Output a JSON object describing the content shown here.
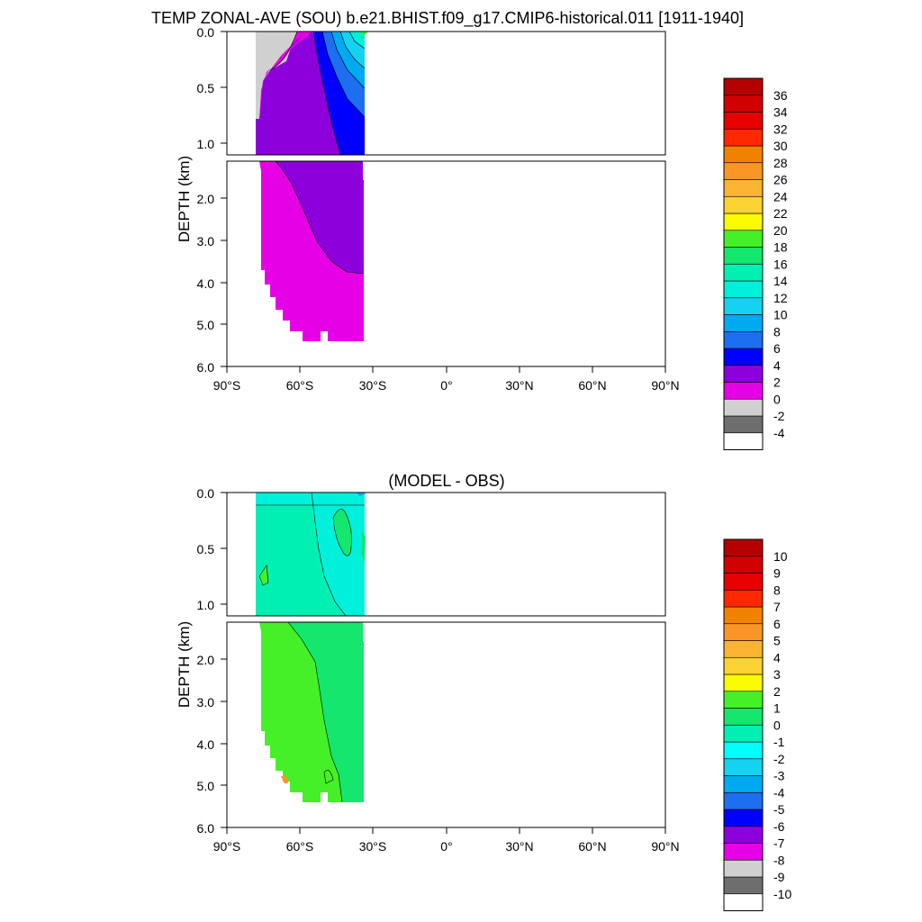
{
  "figure": {
    "title": "TEMP ZONAL-AVE (SOU) b.e21.BHIST.f09_g17.CMIP6-historical.011 [1911-1940]"
  },
  "chart_data": [
    {
      "type": "heatmap",
      "title": "TEMP ZONAL-AVE (SOU) b.e21.BHIST.f09_g17.CMIP6-historical.011 [1911-1940]",
      "xlabel": "",
      "ylabel": "DEPTH (km)",
      "x_ticks": [
        "90°S",
        "60°S",
        "30°S",
        "0°",
        "30°N",
        "60°N",
        "90°N"
      ],
      "y_ticks_upper": [
        "0.0",
        "0.5",
        "1.0"
      ],
      "y_ticks_lower": [
        "2.0",
        "3.0",
        "4.0",
        "5.0",
        "6.0"
      ],
      "xlim": [
        -90,
        90
      ],
      "ylim_upper_km": [
        0,
        1.1
      ],
      "ylim_lower_km": [
        1.1,
        6.0
      ],
      "data_extent_lat": [
        -78,
        -34
      ],
      "colorbar": {
        "levels": [
          "-4",
          "-2",
          "0",
          "2",
          "4",
          "6",
          "8",
          "10",
          "12",
          "14",
          "16",
          "18",
          "20",
          "22",
          "24",
          "26",
          "28",
          "30",
          "32",
          "34",
          "36"
        ],
        "colors": [
          "#ffffff",
          "#6e6e6e",
          "#d0d0d0",
          "#e600e6",
          "#8c00dc",
          "#0000ff",
          "#1e6ef0",
          "#00aaf0",
          "#14d2f0",
          "#00f0dc",
          "#00f0b4",
          "#14e66e",
          "#46f028",
          "#fafa00",
          "#fad232",
          "#fab432",
          "#fa9628",
          "#f08200",
          "#ff2800",
          "#e60000",
          "#d20000",
          "#b40000"
        ]
      }
    },
    {
      "type": "heatmap",
      "title": "(MODEL - OBS)",
      "xlabel": "",
      "ylabel": "DEPTH (km)",
      "x_ticks": [
        "90°S",
        "60°S",
        "30°S",
        "0°",
        "30°N",
        "60°N",
        "90°N"
      ],
      "y_ticks_upper": [
        "0.0",
        "0.5",
        "1.0"
      ],
      "y_ticks_lower": [
        "2.0",
        "3.0",
        "4.0",
        "5.0",
        "6.0"
      ],
      "xlim": [
        -90,
        90
      ],
      "ylim_upper_km": [
        0,
        1.1
      ],
      "ylim_lower_km": [
        1.1,
        6.0
      ],
      "data_extent_lat": [
        -78,
        -34
      ],
      "colorbar": {
        "levels": [
          "-10",
          "-9",
          "-8",
          "-7",
          "-6",
          "-5",
          "-4",
          "-3",
          "-2",
          "-1",
          "0",
          "1",
          "2",
          "3",
          "4",
          "5",
          "6",
          "7",
          "8",
          "9",
          "10"
        ],
        "colors": [
          "#ffffff",
          "#6e6e6e",
          "#d0d0d0",
          "#e600e6",
          "#8c00dc",
          "#0000ff",
          "#1e6ef0",
          "#00aaf0",
          "#14d2f0",
          "#00ffff",
          "#00f0b4",
          "#14e66e",
          "#46f028",
          "#fafa00",
          "#fad232",
          "#fab432",
          "#fa9628",
          "#f08200",
          "#ff2800",
          "#e60000",
          "#d20000",
          "#b40000"
        ]
      }
    }
  ]
}
